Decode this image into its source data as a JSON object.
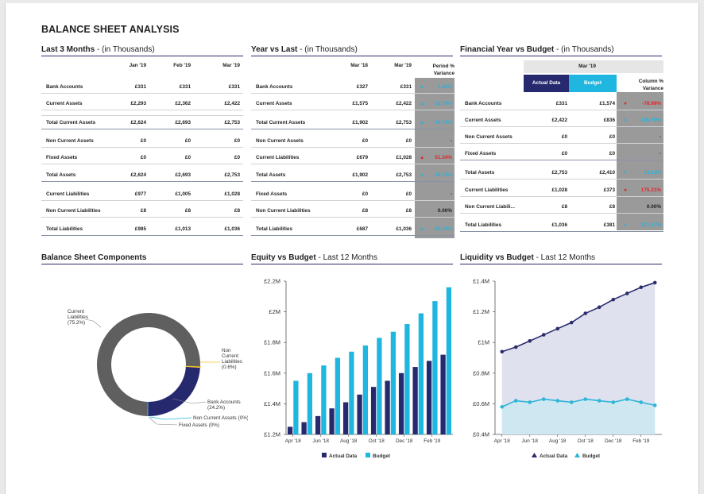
{
  "title": "BALANCE SHEET ANALYSIS",
  "colors": {
    "navy": "#26296e",
    "cyan": "#1fb6e0",
    "grey": "#5f5f5f",
    "yellow": "#f2c12e",
    "line_dark": "#2b2d6e",
    "line_light": "#2fb4d8"
  },
  "last3": {
    "title": "Last 3 Months",
    "subtitle": "- (in Thousands)",
    "columns": [
      "Jan '19",
      "Feb '19",
      "Mar '19"
    ],
    "rows": [
      {
        "label": "Bank Accounts",
        "values": [
          "£331",
          "£331",
          "£331"
        ]
      },
      {
        "label": "Current Assets",
        "values": [
          "£2,293",
          "£2,362",
          "£2,422"
        ]
      },
      {
        "label": "Total Current Assets",
        "values": [
          "£2,624",
          "£2,693",
          "£2,753"
        ]
      },
      {
        "label": "Non Current Assets",
        "values": [
          "£0",
          "£0",
          "£0"
        ]
      },
      {
        "label": "Fixed Assets",
        "values": [
          "£0",
          "£0",
          "£0"
        ]
      },
      {
        "label": "Total Assets",
        "values": [
          "£2,624",
          "£2,693",
          "£2,753"
        ]
      },
      {
        "label": "Current Liabilities",
        "values": [
          "£977",
          "£1,005",
          "£1,028"
        ]
      },
      {
        "label": "Non Current Liabilities",
        "values": [
          "£8",
          "£8",
          "£8"
        ]
      },
      {
        "label": "Total Liabilities",
        "values": [
          "£985",
          "£1,013",
          "£1,036"
        ]
      }
    ]
  },
  "yvl": {
    "title": "Year vs Last",
    "subtitle": "- (in Thousands)",
    "columns": [
      "Mar '18",
      "Mar '19",
      "Period % Variance"
    ],
    "rows": [
      {
        "label": "Bank Accounts",
        "values": [
          "£327",
          "£331"
        ],
        "var": "1.22%",
        "dir": "up"
      },
      {
        "label": "Current Assets",
        "values": [
          "£1,575",
          "£2,422"
        ],
        "var": "53.78%",
        "dir": "up"
      },
      {
        "label": "Total Current Assets",
        "values": [
          "£1,902",
          "£2,753"
        ],
        "var": "44.74%",
        "dir": "up"
      },
      {
        "label": "Non Current Assets",
        "values": [
          "£0",
          "£0"
        ],
        "var": "-",
        "dir": "none"
      },
      {
        "label": "Current Liabilities",
        "values": [
          "£679",
          "£1,028"
        ],
        "var": "51.34%",
        "dir": "down"
      },
      {
        "label": "Total Assets",
        "values": [
          "£1,902",
          "£2,753"
        ],
        "var": "44.74%",
        "dir": "up"
      },
      {
        "label": "Fixed Assets",
        "values": [
          "£0",
          "£0"
        ],
        "var": "-",
        "dir": "none"
      },
      {
        "label": "Non Current Liabilities",
        "values": [
          "£8",
          "£8"
        ],
        "var": "0.00%",
        "dir": "none"
      },
      {
        "label": "Total Liabilities",
        "values": [
          "£687",
          "£1,036"
        ],
        "var": "50.74%",
        "dir": "up"
      }
    ]
  },
  "fyb": {
    "title": "Financial Year vs Budget",
    "subtitle": "- (in Thousands)",
    "period": "Mar '19",
    "columns": [
      "Actual Data",
      "Budget",
      "Column % Variance"
    ],
    "rows": [
      {
        "label": "Bank Accounts",
        "values": [
          "£331",
          "£1,574"
        ],
        "var": "-78.99%",
        "dir": "down"
      },
      {
        "label": "Current Assets",
        "values": [
          "£2,422",
          "£836"
        ],
        "var": "189.79%",
        "dir": "up"
      },
      {
        "label": "Non Current Assets",
        "values": [
          "£0",
          "£0"
        ],
        "var": "-",
        "dir": "none"
      },
      {
        "label": "Fixed Assets",
        "values": [
          "£0",
          "£0"
        ],
        "var": "-",
        "dir": "none"
      },
      {
        "label": "Total Assets",
        "values": [
          "£2,753",
          "£2,410"
        ],
        "var": "14.23%",
        "dir": "up"
      },
      {
        "label": "Current Liabilities",
        "values": [
          "£1,028",
          "£373"
        ],
        "var": "175.21%",
        "dir": "down"
      },
      {
        "label": "Non Current Liabili...",
        "values": [
          "£8",
          "£8"
        ],
        "var": "0.00%",
        "dir": "none"
      },
      {
        "label": "Total Liabilities",
        "values": [
          "£1,036",
          "£381"
        ],
        "var": "171.57%",
        "dir": "up"
      }
    ]
  },
  "chart_data": [
    {
      "type": "pie",
      "title": "Balance Sheet Components",
      "slices": [
        {
          "label": "Current Liabilities",
          "pct_label": "(75.2%)",
          "value": 75.2
        },
        {
          "label": "Non Current Liabilities",
          "pct_label": "(0.6%)",
          "value": 0.6
        },
        {
          "label": "Bank Accounts",
          "pct_label": "(24.2%)",
          "value": 24.2
        },
        {
          "label": "Non Current Assets",
          "pct_label": "(0%)",
          "value": 0
        },
        {
          "label": "Fixed Assets",
          "pct_label": "(0%)",
          "value": 0
        }
      ]
    },
    {
      "type": "bar",
      "title": "Equity vs Budget",
      "subtitle": "- Last 12 Months",
      "categories": [
        "Apr '18",
        "May '18",
        "Jun '18",
        "Jul '18",
        "Aug '18",
        "Sep '18",
        "Oct '18",
        "Nov '18",
        "Dec '18",
        "Jan '19",
        "Feb '19",
        "Mar '19"
      ],
      "tick_labels": [
        "Apr '18",
        "Jun '18",
        "Aug '18",
        "Oct '18",
        "Dec '18",
        "Feb '19"
      ],
      "series": [
        {
          "name": "Actual Data",
          "values": [
            1.25,
            1.28,
            1.32,
            1.37,
            1.41,
            1.46,
            1.51,
            1.55,
            1.6,
            1.64,
            1.68,
            1.72
          ]
        },
        {
          "name": "Budget",
          "values": [
            1.55,
            1.6,
            1.65,
            1.7,
            1.74,
            1.78,
            1.83,
            1.87,
            1.92,
            1.99,
            2.07,
            2.16
          ]
        }
      ],
      "ylim": [
        1.2,
        2.2
      ],
      "yticks": [
        "£1.2M",
        "£1.4M",
        "£1.6M",
        "£1.8M",
        "£2M",
        "£2.2M"
      ]
    },
    {
      "type": "line",
      "title": "Liquidity vs Budget",
      "subtitle": "- Last 12 Months",
      "categories": [
        "Apr '18",
        "May '18",
        "Jun '18",
        "Jul '18",
        "Aug '18",
        "Sep '18",
        "Oct '18",
        "Nov '18",
        "Dec '18",
        "Jan '19",
        "Feb '19",
        "Mar '19"
      ],
      "tick_labels": [
        "Apr '18",
        "Jun '18",
        "Aug '18",
        "Oct '18",
        "Dec '18",
        "Feb '19"
      ],
      "series": [
        {
          "name": "Actual Data",
          "values": [
            0.94,
            0.97,
            1.01,
            1.05,
            1.09,
            1.13,
            1.19,
            1.23,
            1.28,
            1.32,
            1.36,
            1.39
          ]
        },
        {
          "name": "Budget",
          "values": [
            0.58,
            0.62,
            0.61,
            0.63,
            0.62,
            0.61,
            0.63,
            0.62,
            0.61,
            0.63,
            0.61,
            0.59
          ]
        }
      ],
      "ylim": [
        0.4,
        1.4
      ],
      "yticks": [
        "£0.4M",
        "£0.6M",
        "£0.8M",
        "£1M",
        "£1.2M",
        "£1.4M"
      ]
    }
  ]
}
